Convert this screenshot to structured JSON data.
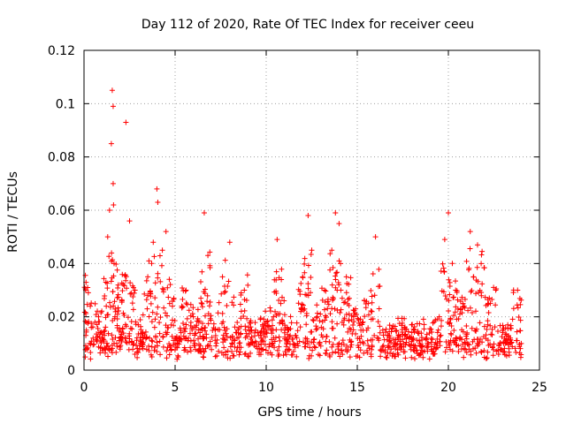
{
  "chart_data": {
    "type": "scatter",
    "title": "Day 112 of 2020, Rate Of TEC Index for receiver ceeu",
    "xlabel": "GPS time / hours",
    "ylabel": "ROTI / TECUs",
    "xlim": [
      0,
      25
    ],
    "ylim": [
      0,
      0.12
    ],
    "xticks": [
      0,
      5,
      10,
      15,
      20,
      25
    ],
    "xtick_labels": [
      "0",
      "5",
      "10",
      "15",
      "20",
      "25"
    ],
    "yticks": [
      0,
      0.02,
      0.04,
      0.06,
      0.08,
      0.1,
      0.12
    ],
    "ytick_labels": [
      "0",
      "0.02",
      "0.04",
      "0.06",
      "0.08",
      "0.1",
      "0.12"
    ],
    "grid": true,
    "marker": "+",
    "color": "#ff0000",
    "x_range_hours": [
      0,
      24
    ],
    "series": [
      {
        "name": "ROTI",
        "x": [
          0.1,
          0.2,
          0.3,
          0.4,
          0.5,
          0.6,
          0.7,
          0.8,
          0.9,
          1.0,
          1.2,
          1.3,
          1.4,
          1.5,
          1.55,
          1.6,
          1.6,
          1.62,
          1.65,
          1.7,
          1.8,
          2.0,
          2.3,
          2.5,
          2.8,
          3.2,
          3.5,
          3.8,
          4.0,
          4.05,
          4.3,
          4.5,
          4.7,
          5.0,
          5.3,
          5.6,
          6.0,
          6.3,
          6.6,
          6.8,
          7.2,
          7.6,
          8.0,
          8.4,
          8.8,
          9.2,
          9.6,
          10.0,
          10.4,
          10.6,
          10.8,
          11.2,
          11.6,
          12.0,
          12.3,
          12.5,
          12.8,
          13.2,
          13.6,
          13.8,
          14.0,
          14.4,
          14.8,
          15.2,
          15.6,
          16.0,
          16.4,
          16.8,
          17.2,
          17.6,
          18.0,
          18.4,
          18.8,
          19.2,
          19.5,
          19.8,
          20.0,
          20.4,
          20.8,
          21.2,
          21.6,
          21.8,
          22.2,
          22.6,
          23.0,
          23.4,
          23.8,
          24.0
        ],
        "y": [
          0.013,
          0.031,
          0.01,
          0.016,
          0.012,
          0.018,
          0.011,
          0.02,
          0.014,
          0.012,
          0.033,
          0.05,
          0.06,
          0.085,
          0.105,
          0.099,
          0.07,
          0.062,
          0.04,
          0.02,
          0.01,
          0.012,
          0.093,
          0.056,
          0.03,
          0.01,
          0.035,
          0.048,
          0.068,
          0.063,
          0.045,
          0.052,
          0.025,
          0.012,
          0.015,
          0.03,
          0.02,
          0.018,
          0.059,
          0.043,
          0.015,
          0.035,
          0.048,
          0.012,
          0.03,
          0.015,
          0.013,
          0.018,
          0.02,
          0.049,
          0.025,
          0.015,
          0.013,
          0.035,
          0.058,
          0.045,
          0.02,
          0.03,
          0.045,
          0.059,
          0.055,
          0.035,
          0.02,
          0.015,
          0.025,
          0.05,
          0.015,
          0.012,
          0.01,
          0.013,
          0.012,
          0.011,
          0.012,
          0.006,
          0.02,
          0.049,
          0.059,
          0.03,
          0.025,
          0.052,
          0.047,
          0.04,
          0.025,
          0.03,
          0.015,
          0.012,
          0.03,
          0.01
        ]
      }
    ]
  }
}
